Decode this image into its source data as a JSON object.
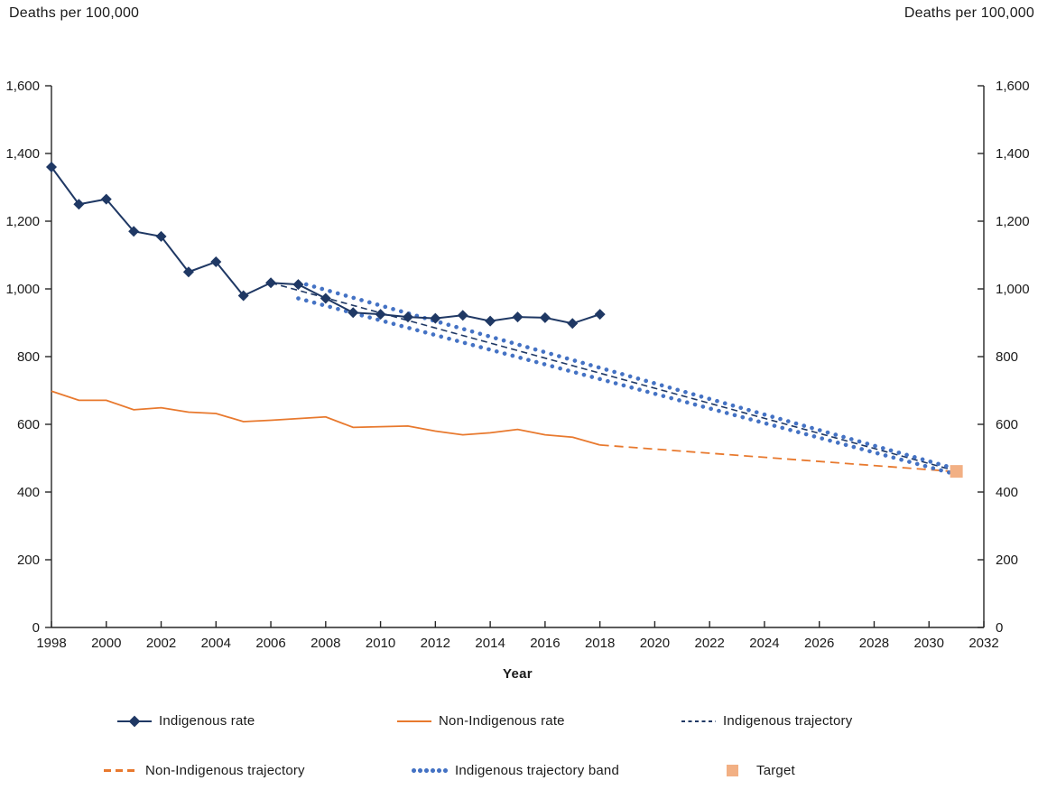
{
  "axis_titles": {
    "left": "Deaths per 100,000",
    "right": "Deaths per 100,000",
    "x": "Year"
  },
  "y_axis": {
    "tick_labels": [
      "0",
      "200",
      "400",
      "600",
      "800",
      "1,000",
      "1,200",
      "1,400",
      "1,600"
    ]
  },
  "x_axis": {
    "tick_labels": [
      "1998",
      "2000",
      "2002",
      "2004",
      "2006",
      "2008",
      "2010",
      "2012",
      "2014",
      "2016",
      "2018",
      "2020",
      "2022",
      "2024",
      "2026",
      "2028",
      "2030",
      "2032"
    ]
  },
  "colors": {
    "navy": "#1F3864",
    "orange": "#E8792E",
    "band": "#4472C4",
    "target": "#F2B084",
    "axis": "#262626",
    "text": "#1A1A1A"
  },
  "legend": {
    "items": [
      {
        "label": "Indigenous rate"
      },
      {
        "label": "Non-Indigenous rate"
      },
      {
        "label": "Indigenous trajectory"
      },
      {
        "label": "Non-Indigenous trajectory"
      },
      {
        "label": "Indigenous trajectory band"
      },
      {
        "label": "Target"
      }
    ]
  },
  "chart_data": {
    "type": "line",
    "title": "",
    "xlabel": "Year",
    "ylabel": "Deaths per 100,000",
    "xlim": [
      1998,
      2032
    ],
    "ylim": [
      0,
      1600
    ],
    "grid": false,
    "legend_position": "bottom",
    "series": [
      {
        "name": "Indigenous rate",
        "style": "solid-diamond",
        "color": "#1F3864",
        "x": [
          1998,
          1999,
          2000,
          2001,
          2002,
          2003,
          2004,
          2005,
          2006,
          2007,
          2008,
          2009,
          2010,
          2011,
          2012,
          2013,
          2014,
          2015,
          2016,
          2017,
          2018
        ],
        "values": [
          1360,
          1250,
          1265,
          1170,
          1155,
          1050,
          1080,
          980,
          1018,
          1013,
          972,
          930,
          925,
          917,
          913,
          922,
          905,
          917,
          915,
          898,
          925
        ]
      },
      {
        "name": "Non-Indigenous rate",
        "style": "solid",
        "color": "#E8792E",
        "x": [
          1998,
          1999,
          2000,
          2001,
          2002,
          2003,
          2004,
          2005,
          2006,
          2007,
          2008,
          2009,
          2010,
          2011,
          2012,
          2013,
          2014,
          2015,
          2016,
          2017,
          2018
        ],
        "values": [
          698,
          671,
          671,
          643,
          649,
          636,
          632,
          608,
          612,
          617,
          622,
          591,
          593,
          595,
          580,
          569,
          575,
          585,
          569,
          562,
          539
        ]
      },
      {
        "name": "Indigenous trajectory",
        "style": "dashed",
        "color": "#1F3864",
        "x": [
          2006,
          2031
        ],
        "values": [
          1018,
          462
        ]
      },
      {
        "name": "Non-Indigenous trajectory",
        "style": "dashed-long",
        "color": "#E8792E",
        "x": [
          2018,
          2031
        ],
        "values": [
          539,
          460
        ]
      },
      {
        "name": "Indigenous trajectory band upper",
        "style": "dotted",
        "color": "#4472C4",
        "x": [
          2007,
          2031
        ],
        "values": [
          1020,
          468
        ]
      },
      {
        "name": "Indigenous trajectory band lower",
        "style": "dotted",
        "color": "#4472C4",
        "x": [
          2007,
          2031
        ],
        "values": [
          972,
          452
        ]
      },
      {
        "name": "Target",
        "style": "square-marker",
        "color": "#F2B084",
        "x": [
          2031
        ],
        "values": [
          461
        ]
      }
    ]
  }
}
